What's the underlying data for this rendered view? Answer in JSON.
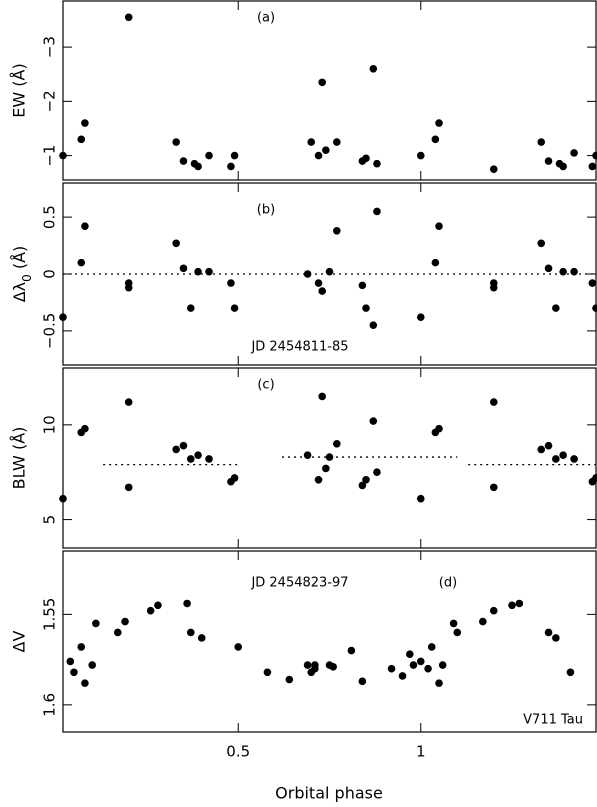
{
  "xlabel": "Orbital phase",
  "chart_data": [
    {
      "type": "scatter",
      "panel_label": "(a)",
      "ylabel": "EW (Å)",
      "xlim": [
        0.02,
        1.48
      ],
      "ylim": [
        -0.55,
        -3.85
      ],
      "y_inverted": true,
      "xticks": [
        0.5,
        1
      ],
      "yticks": [
        -1,
        -2,
        -3
      ],
      "yticklabels": [
        "−1",
        "−2",
        "−3"
      ],
      "x": [
        0.02,
        0.07,
        0.08,
        0.2,
        0.33,
        0.35,
        0.38,
        0.39,
        0.42,
        0.48,
        0.49,
        0.7,
        0.72,
        0.73,
        0.74,
        0.77,
        0.84,
        0.85,
        0.87,
        0.88,
        1.0,
        1.04,
        1.05,
        1.2,
        1.33,
        1.35,
        1.38,
        1.39,
        1.42,
        1.47,
        1.48
      ],
      "y": [
        -1.0,
        -1.3,
        -1.6,
        -3.55,
        -1.25,
        -0.9,
        -0.85,
        -0.8,
        -1.0,
        -0.8,
        -1.0,
        -1.25,
        -1.0,
        -2.35,
        -1.1,
        -1.25,
        -0.9,
        -0.95,
        -2.6,
        -0.85,
        -1.0,
        -1.3,
        -1.6,
        -0.75,
        -1.25,
        -0.9,
        -0.85,
        -0.8,
        -1.05,
        -0.8,
        -1.0
      ]
    },
    {
      "type": "scatter",
      "panel_label": "(b)",
      "ylabel": "Δλ0 (Å)",
      "annotation": "JD 2454811-85",
      "xlim": [
        0.02,
        1.48
      ],
      "ylim": [
        -0.8,
        0.8
      ],
      "xticks": [
        0.5,
        1
      ],
      "yticks": [
        0.5,
        0,
        -0.5
      ],
      "yticklabels": [
        "0.5",
        "0",
        "−0.5"
      ],
      "reference_line": {
        "y": 0,
        "style": "dotted"
      },
      "x": [
        0.02,
        0.07,
        0.08,
        0.2,
        0.2,
        0.33,
        0.35,
        0.37,
        0.39,
        0.42,
        0.48,
        0.49,
        0.69,
        0.72,
        0.73,
        0.75,
        0.77,
        0.84,
        0.85,
        0.87,
        0.88,
        1.0,
        1.04,
        1.05,
        1.2,
        1.2,
        1.33,
        1.35,
        1.37,
        1.39,
        1.42,
        1.47,
        1.48
      ],
      "y": [
        -0.38,
        0.1,
        0.42,
        -0.08,
        -0.12,
        0.27,
        0.05,
        -0.3,
        0.02,
        0.02,
        -0.08,
        -0.3,
        0.0,
        -0.08,
        -0.15,
        0.02,
        0.38,
        -0.1,
        -0.3,
        -0.45,
        0.55,
        -0.38,
        0.1,
        0.42,
        -0.08,
        -0.12,
        0.27,
        0.05,
        -0.3,
        0.02,
        0.02,
        -0.08,
        -0.3
      ]
    },
    {
      "type": "scatter",
      "panel_label": "(c)",
      "ylabel": "BLW (Å)",
      "xlim": [
        0.02,
        1.48
      ],
      "ylim": [
        3.5,
        13.0
      ],
      "xticks": [
        0.5,
        1
      ],
      "yticks": [
        5,
        10
      ],
      "yticklabels": [
        "5",
        "10"
      ],
      "reference_segments": [
        {
          "y": 7.9,
          "x": [
            0.13,
            0.5
          ]
        },
        {
          "y": 8.3,
          "x": [
            0.62,
            1.1
          ]
        },
        {
          "y": 7.9,
          "x": [
            1.13,
            1.48
          ]
        }
      ],
      "x": [
        0.02,
        0.07,
        0.08,
        0.2,
        0.2,
        0.33,
        0.35,
        0.37,
        0.39,
        0.42,
        0.48,
        0.49,
        0.69,
        0.72,
        0.73,
        0.74,
        0.75,
        0.77,
        0.84,
        0.85,
        0.87,
        0.88,
        1.0,
        1.04,
        1.05,
        1.2,
        1.2,
        1.33,
        1.35,
        1.37,
        1.39,
        1.42,
        1.47,
        1.48
      ],
      "y": [
        6.1,
        9.6,
        9.8,
        11.2,
        6.7,
        8.7,
        8.9,
        8.2,
        8.4,
        8.2,
        7.0,
        7.2,
        8.4,
        7.1,
        11.5,
        7.7,
        8.3,
        9.0,
        6.8,
        7.1,
        10.2,
        7.5,
        6.1,
        9.6,
        9.8,
        11.2,
        6.7,
        8.7,
        8.9,
        8.2,
        8.4,
        8.2,
        7.0,
        7.2
      ]
    },
    {
      "type": "scatter",
      "panel_label": "(d)",
      "ylabel": "ΔV",
      "annotation": "JD 2454823-97",
      "star_label": "V711 Tau",
      "xlim": [
        0.02,
        1.48
      ],
      "ylim": [
        1.615,
        1.515
      ],
      "y_inverted": true,
      "xticks": [
        0.5,
        1
      ],
      "yticks": [
        1.55,
        1.6
      ],
      "yticklabels": [
        "1.55",
        "1.6"
      ],
      "x": [
        0.04,
        0.05,
        0.07,
        0.08,
        0.1,
        0.11,
        0.17,
        0.19,
        0.26,
        0.28,
        0.36,
        0.37,
        0.4,
        0.5,
        0.58,
        0.64,
        0.69,
        0.7,
        0.71,
        0.71,
        0.75,
        0.76,
        0.81,
        0.84,
        0.92,
        0.95,
        0.97,
        0.98,
        1.0,
        1.02,
        1.03,
        1.05,
        1.06,
        1.09,
        1.1,
        1.17,
        1.2,
        1.25,
        1.27,
        1.35,
        1.37,
        1.41
      ],
      "y": [
        1.576,
        1.582,
        1.568,
        1.588,
        1.578,
        1.555,
        1.56,
        1.554,
        1.548,
        1.545,
        1.544,
        1.56,
        1.563,
        1.568,
        1.582,
        1.586,
        1.578,
        1.582,
        1.58,
        1.578,
        1.578,
        1.579,
        1.57,
        1.587,
        1.58,
        1.584,
        1.572,
        1.578,
        1.576,
        1.58,
        1.568,
        1.588,
        1.578,
        1.555,
        1.56,
        1.554,
        1.548,
        1.545,
        1.544,
        1.56,
        1.563,
        1.582
      ]
    }
  ]
}
